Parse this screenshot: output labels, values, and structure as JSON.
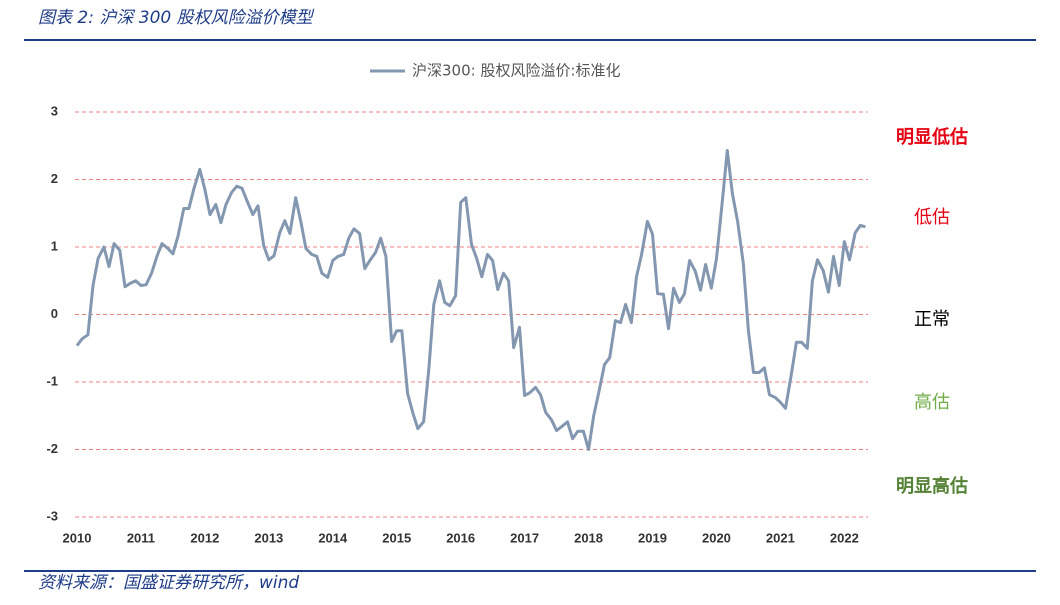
{
  "header": {
    "title": "图表 2:  沪深 300 股权风险溢价模型"
  },
  "chart_data": {
    "type": "line",
    "x": [
      2010.0,
      2010.08,
      2010.17,
      2010.25,
      2010.33,
      2010.42,
      2010.5,
      2010.58,
      2010.67,
      2010.75,
      2010.83,
      2010.92,
      2011.0,
      2011.08,
      2011.17,
      2011.25,
      2011.33,
      2011.42,
      2011.5,
      2011.58,
      2011.67,
      2011.75,
      2011.83,
      2011.92,
      2012.0,
      2012.08,
      2012.17,
      2012.25,
      2012.33,
      2012.42,
      2012.5,
      2012.58,
      2012.67,
      2012.75,
      2012.83,
      2012.92,
      2013.0,
      2013.08,
      2013.17,
      2013.25,
      2013.33,
      2013.42,
      2013.5,
      2013.58,
      2013.67,
      2013.75,
      2013.83,
      2013.92,
      2014.0,
      2014.08,
      2014.17,
      2014.25,
      2014.33,
      2014.42,
      2014.5,
      2014.58,
      2014.67,
      2014.75,
      2014.83,
      2014.92,
      2015.0,
      2015.08,
      2015.17,
      2015.25,
      2015.33,
      2015.42,
      2015.5,
      2015.58,
      2015.67,
      2015.75,
      2015.83,
      2015.92,
      2016.0,
      2016.08,
      2016.17,
      2016.25,
      2016.33,
      2016.42,
      2016.5,
      2016.58,
      2016.67,
      2016.75,
      2016.83,
      2016.92,
      2017.0,
      2017.08,
      2017.17,
      2017.25,
      2017.33,
      2017.42,
      2017.5,
      2017.58,
      2017.67,
      2017.75,
      2017.83,
      2017.92,
      2018.0,
      2018.08,
      2018.17,
      2018.25,
      2018.33,
      2018.42,
      2018.5,
      2018.58,
      2018.67,
      2018.75,
      2018.83,
      2018.92,
      2019.0,
      2019.08,
      2019.17,
      2019.25,
      2019.33,
      2019.42,
      2019.5,
      2019.58,
      2019.67,
      2019.75,
      2019.83,
      2019.92,
      2020.0,
      2020.08,
      2020.17,
      2020.25,
      2020.33,
      2020.42,
      2020.5,
      2020.58,
      2020.67,
      2020.75,
      2020.83,
      2020.92,
      2021.0,
      2021.08,
      2021.17,
      2021.25,
      2021.33,
      2021.42,
      2021.5,
      2021.58,
      2021.67,
      2021.75,
      2021.83,
      2021.92,
      2022.0,
      2022.08,
      2022.17,
      2022.25,
      2022.33
    ],
    "series": [
      {
        "name": "沪深300: 股权风险溢价:标准化",
        "color": "#8497b0",
        "values": [
          -0.46,
          -0.36,
          -0.3,
          0.43,
          0.83,
          1.0,
          0.71,
          1.05,
          0.95,
          0.41,
          0.46,
          0.5,
          0.43,
          0.44,
          0.62,
          0.86,
          1.05,
          0.98,
          0.9,
          1.16,
          1.57,
          1.57,
          1.87,
          2.15,
          1.85,
          1.48,
          1.63,
          1.36,
          1.63,
          1.81,
          1.9,
          1.87,
          1.66,
          1.48,
          1.61,
          1.02,
          0.81,
          0.87,
          1.21,
          1.39,
          1.2,
          1.73,
          1.38,
          0.98,
          0.89,
          0.86,
          0.61,
          0.55,
          0.8,
          0.86,
          0.89,
          1.13,
          1.27,
          1.2,
          0.68,
          0.8,
          0.92,
          1.13,
          0.86,
          -0.4,
          -0.24,
          -0.24,
          -1.17,
          -1.45,
          -1.69,
          -1.59,
          -0.83,
          0.15,
          0.5,
          0.18,
          0.13,
          0.28,
          1.66,
          1.73,
          1.04,
          0.83,
          0.56,
          0.89,
          0.8,
          0.37,
          0.61,
          0.5,
          -0.49,
          -0.19,
          -1.2,
          -1.16,
          -1.08,
          -1.19,
          -1.45,
          -1.56,
          -1.72,
          -1.66,
          -1.59,
          -1.84,
          -1.73,
          -1.73,
          -2.0,
          -1.5,
          -1.11,
          -0.74,
          -0.64,
          -0.09,
          -0.12,
          0.15,
          -0.12,
          0.56,
          0.89,
          1.38,
          1.19,
          0.31,
          0.3,
          -0.21,
          0.39,
          0.18,
          0.31,
          0.8,
          0.64,
          0.36,
          0.74,
          0.39,
          0.83,
          1.57,
          2.43,
          1.79,
          1.38,
          0.76,
          -0.24,
          -0.86,
          -0.86,
          -0.79,
          -1.19,
          -1.23,
          -1.3,
          -1.39,
          -0.89,
          -0.41,
          -0.41,
          -0.5,
          0.5,
          0.81,
          0.65,
          0.33,
          0.86,
          0.43,
          1.08,
          0.81,
          1.21,
          1.32,
          1.3
        ]
      }
    ],
    "xlim": [
      2010,
      2022.37
    ],
    "xticks": [
      2010,
      2011,
      2012,
      2013,
      2014,
      2015,
      2016,
      2017,
      2018,
      2019,
      2020,
      2021,
      2022
    ],
    "ylim": [
      -3,
      3
    ],
    "yticks": [
      -3,
      -2,
      -1,
      0,
      1,
      2,
      3
    ],
    "grid": true,
    "grid_color": "#f08080",
    "legend": "top",
    "annotations": [
      {
        "text": "明显低估",
        "color": "#e60012",
        "bold": true
      },
      {
        "text": "低估",
        "color": "#e60012",
        "bold": false
      },
      {
        "text": "正常",
        "color": "#000000",
        "bold": false
      },
      {
        "text": "高估",
        "color": "#70ad47",
        "bold": false
      },
      {
        "text": "明显高估",
        "color": "#548235",
        "bold": true
      }
    ]
  },
  "footer": {
    "source": "资料来源：国盛证券研究所，wind"
  }
}
